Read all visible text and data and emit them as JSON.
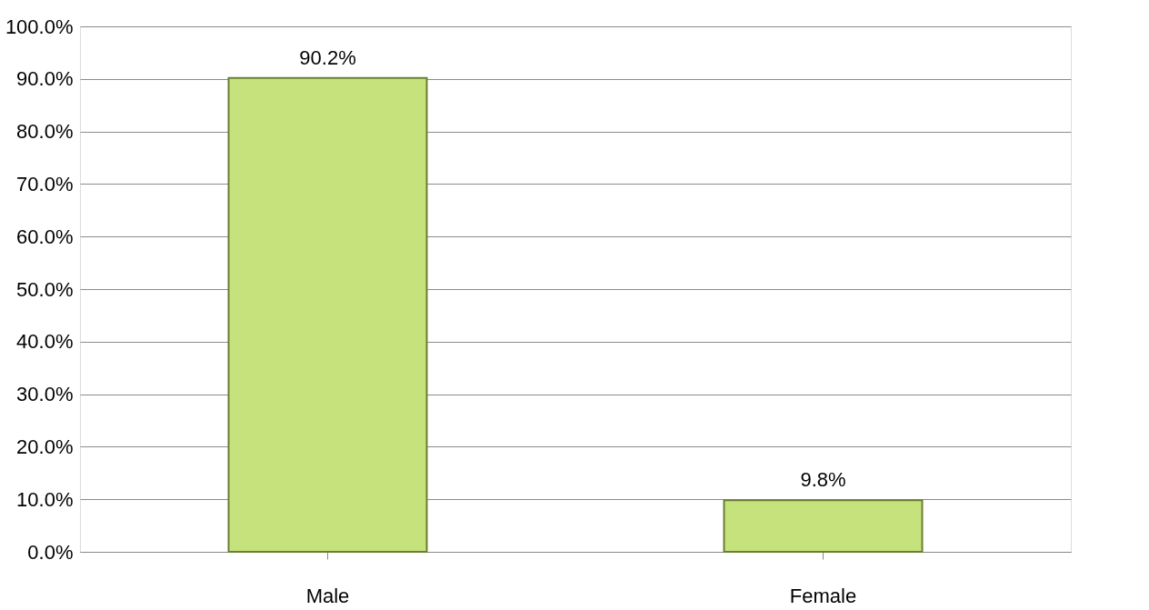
{
  "chart_data": {
    "type": "bar",
    "categories": [
      "Male",
      "Female"
    ],
    "values": [
      90.2,
      9.8
    ],
    "color": "#c6e27c",
    "value_labels": [
      "90.2%",
      "9.8%"
    ],
    "ylim": [
      0,
      100
    ],
    "yticks": [
      {
        "value": 0,
        "label": "0.0%"
      },
      {
        "value": 10,
        "label": "10.0%"
      },
      {
        "value": 20,
        "label": "20.0%"
      },
      {
        "value": 30,
        "label": "30.0%"
      },
      {
        "value": 40,
        "label": "40.0%"
      },
      {
        "value": 50,
        "label": "50.0%"
      },
      {
        "value": 60,
        "label": "60.0%"
      },
      {
        "value": 70,
        "label": "70.0%"
      },
      {
        "value": 80,
        "label": "80.0%"
      },
      {
        "value": 90,
        "label": "90.0%"
      },
      {
        "value": 100,
        "label": "100.0%"
      }
    ],
    "grid": "y"
  }
}
